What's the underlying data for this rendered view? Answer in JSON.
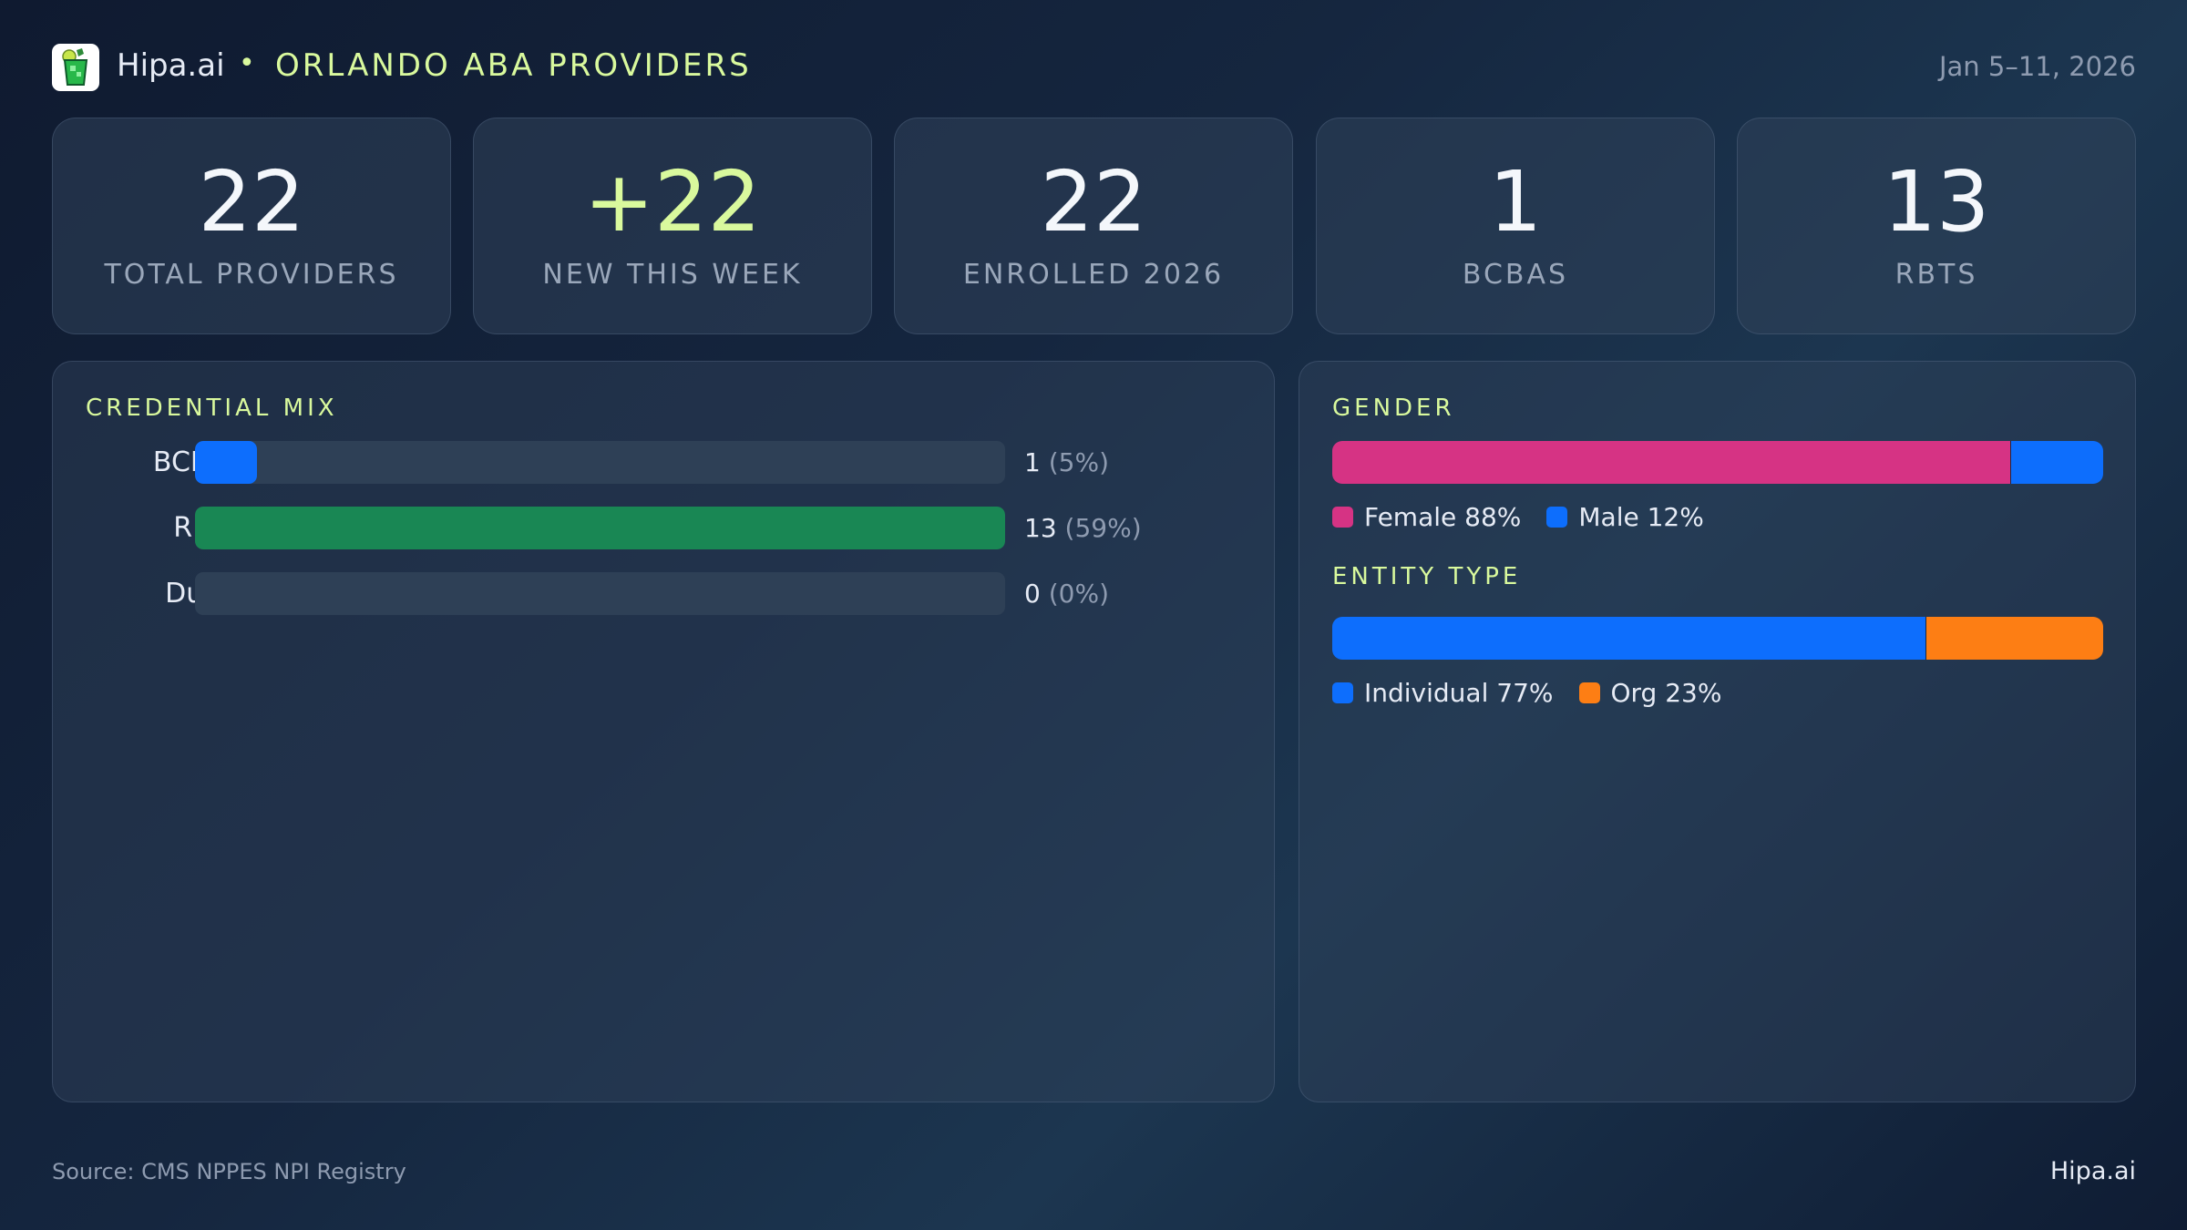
{
  "header": {
    "brand": "Hipa.ai",
    "separator": "•",
    "title": "ORLANDO ABA PROVIDERS",
    "date_range": "Jan 5–11, 2026",
    "logo_icon": "mojito-glass-icon"
  },
  "stats": [
    {
      "value": "22",
      "label": "TOTAL PROVIDERS"
    },
    {
      "value": "+22",
      "label": "NEW THIS WEEK",
      "accent": true
    },
    {
      "value": "22",
      "label": "ENROLLED 2026"
    },
    {
      "value": "1",
      "label": "BCBAS"
    },
    {
      "value": "13",
      "label": "RBTS"
    }
  ],
  "credential_mix": {
    "title": "CREDENTIAL MIX",
    "rows": [
      {
        "label": "BCBA",
        "count": "1",
        "pct": "(5%)",
        "fraction": 0.077,
        "color": "#0d6efd"
      },
      {
        "label": "RBT",
        "count": "13",
        "pct": "(59%)",
        "fraction": 1.0,
        "color": "#198754"
      },
      {
        "label": "Dual",
        "count": "0",
        "pct": "(0%)",
        "fraction": 0,
        "color": "#198754"
      }
    ]
  },
  "gender": {
    "title": "GENDER",
    "segments": [
      {
        "label": "Female 88%",
        "percent": 88,
        "color": "#d63384"
      },
      {
        "label": "Male 12%",
        "percent": 12,
        "color": "#0d6efd"
      }
    ]
  },
  "entity_type": {
    "title": "ENTITY TYPE",
    "segments": [
      {
        "label": "Individual 77%",
        "percent": 77,
        "color": "#0d6efd"
      },
      {
        "label": "Org 23%",
        "percent": 23,
        "color": "#fd7e14"
      }
    ]
  },
  "footer": {
    "source": "Source: CMS NPPES NPI Registry",
    "brand": "Hipa.ai"
  }
}
